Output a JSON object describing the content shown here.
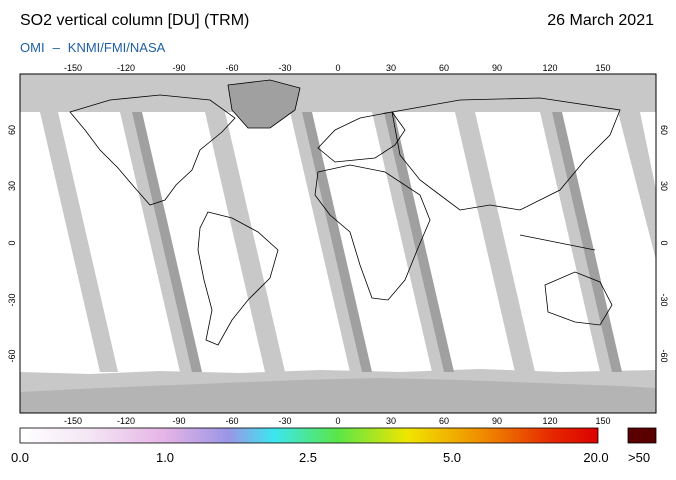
{
  "header": {
    "title": "SO2 vertical column [DU] (TRM)",
    "date": "26 March 2021",
    "credit_left": "OMI",
    "credit_sep": "–",
    "credit_right": "KNMI/FMI/NASA"
  },
  "map": {
    "lon_ticks": [
      "-150",
      "-120",
      "-90",
      "-60",
      "-30",
      "0",
      "30",
      "60",
      "90",
      "120",
      "150"
    ],
    "lat_ticks": [
      "60",
      "30",
      "0",
      "-30",
      "-60"
    ],
    "colors": {
      "frame": "#000000",
      "background": "#ffffff",
      "no_data": "#c8c8c8",
      "swath_gap": "#a0a0a0",
      "land_outline": "#000000"
    }
  },
  "colorbar": {
    "labels": [
      "0.0",
      "1.0",
      "2.5",
      "5.0",
      "20.0"
    ],
    "over_label": ">50",
    "over_color": "#5a0000",
    "stops": [
      "#ffffff",
      "#f4e6f4",
      "#e6b4e6",
      "#9b96e6",
      "#3ce6f0",
      "#5ae646",
      "#f0e600",
      "#f08c00",
      "#e62800",
      "#dc0000"
    ]
  }
}
